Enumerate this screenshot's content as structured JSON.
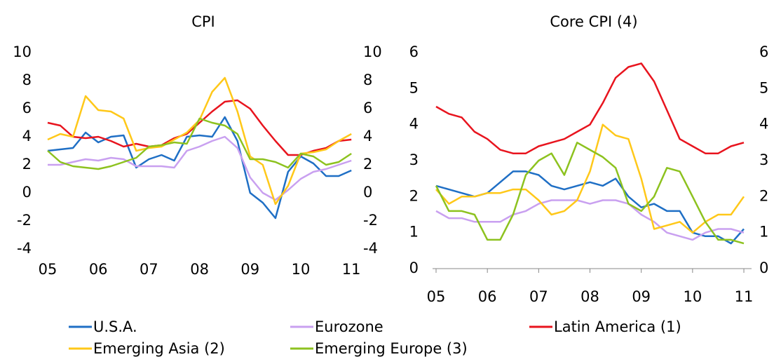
{
  "chart_data": [
    {
      "type": "line",
      "title": "CPI",
      "x": [
        5,
        5.25,
        5.5,
        5.75,
        6,
        6.25,
        6.5,
        6.75,
        7,
        7.25,
        7.5,
        7.75,
        8,
        8.25,
        8.5,
        8.75,
        9,
        9.25,
        9.5,
        9.75,
        10,
        10.25,
        10.5,
        10.75,
        11
      ],
      "xlim": [
        5,
        11.15
      ],
      "xticks": [
        {
          "value": 5,
          "label": "05"
        },
        {
          "value": 6,
          "label": "06"
        },
        {
          "value": 7,
          "label": "07"
        },
        {
          "value": 8,
          "label": "08"
        },
        {
          "value": 9,
          "label": "09"
        },
        {
          "value": 10,
          "label": "10"
        },
        {
          "value": 11,
          "label": "11"
        }
      ],
      "ylim": [
        -4,
        10
      ],
      "yticks": [
        -4,
        -2,
        0,
        2,
        4,
        6,
        8,
        10
      ],
      "y2lim": [
        -4,
        10
      ],
      "y2ticks": [
        -4,
        -2,
        0,
        2,
        4,
        6,
        8,
        10
      ],
      "series": [
        {
          "name": "U.S.A.",
          "color": "#1f6fc5",
          "values": [
            3.0,
            3.1,
            3.2,
            4.3,
            3.6,
            4.0,
            4.1,
            1.8,
            2.4,
            2.7,
            2.3,
            4.0,
            4.1,
            4.0,
            5.4,
            3.7,
            0.0,
            -0.7,
            -1.8,
            1.5,
            2.6,
            2.1,
            1.2,
            1.2,
            1.6
          ]
        },
        {
          "name": "Eurozone",
          "color": "#c9a0f0",
          "values": [
            2.0,
            2.0,
            2.2,
            2.4,
            2.3,
            2.5,
            2.4,
            1.9,
            1.9,
            1.9,
            1.8,
            3.0,
            3.3,
            3.7,
            4.0,
            3.2,
            1.1,
            0.0,
            -0.5,
            0.2,
            1.0,
            1.5,
            1.7,
            2.0,
            2.3
          ]
        },
        {
          "name": "Latin America (1)",
          "color": "#e8141e",
          "values": [
            5.0,
            4.8,
            4.0,
            3.9,
            4.0,
            3.7,
            3.3,
            3.5,
            3.3,
            3.4,
            3.9,
            4.2,
            5.0,
            5.8,
            6.5,
            6.6,
            6.0,
            4.8,
            3.7,
            2.7,
            2.7,
            3.0,
            3.2,
            3.7,
            3.8
          ]
        },
        {
          "name": "Emerging Asia (2)",
          "color": "#ffc819",
          "values": [
            3.8,
            4.2,
            4.0,
            6.9,
            5.9,
            5.8,
            5.3,
            3.0,
            3.2,
            3.3,
            3.8,
            4.3,
            5.2,
            7.2,
            8.2,
            5.8,
            2.6,
            2.0,
            -0.8,
            0.5,
            2.8,
            2.9,
            3.1,
            3.7,
            4.2
          ]
        },
        {
          "name": "Emerging Europe (3)",
          "color": "#8dc21f",
          "values": [
            3.0,
            2.2,
            1.9,
            1.8,
            1.7,
            1.9,
            2.2,
            2.5,
            3.3,
            3.4,
            3.6,
            3.5,
            5.3,
            5.0,
            4.8,
            4.2,
            2.4,
            2.4,
            2.2,
            1.8,
            2.8,
            2.6,
            2.0,
            2.2,
            2.8
          ]
        }
      ]
    },
    {
      "type": "line",
      "title": "Core CPI (4)",
      "x": [
        5,
        5.25,
        5.5,
        5.75,
        6,
        6.25,
        6.5,
        6.75,
        7,
        7.25,
        7.5,
        7.75,
        8,
        8.25,
        8.5,
        8.75,
        9,
        9.25,
        9.5,
        9.75,
        10,
        10.25,
        10.5,
        10.75,
        11
      ],
      "xlim": [
        5,
        11.15
      ],
      "xticks": [
        {
          "value": 5,
          "label": "05"
        },
        {
          "value": 6,
          "label": "06"
        },
        {
          "value": 7,
          "label": "07"
        },
        {
          "value": 8,
          "label": "08"
        },
        {
          "value": 9,
          "label": "09"
        },
        {
          "value": 10,
          "label": "10"
        },
        {
          "value": 11,
          "label": "11"
        }
      ],
      "ylim": [
        0,
        6
      ],
      "yticks": [
        0,
        1,
        2,
        3,
        4,
        5,
        6
      ],
      "y2lim": [
        0,
        6
      ],
      "y2ticks": [
        0,
        1,
        2,
        3,
        4,
        5,
        6
      ],
      "x_axis_line": true,
      "series": [
        {
          "name": "U.S.A.",
          "color": "#1f6fc5",
          "values": [
            2.3,
            2.2,
            2.1,
            2.0,
            2.1,
            2.4,
            2.7,
            2.7,
            2.6,
            2.3,
            2.2,
            2.3,
            2.4,
            2.3,
            2.5,
            2.0,
            1.7,
            1.8,
            1.6,
            1.6,
            1.0,
            0.9,
            0.9,
            0.7,
            1.1
          ]
        },
        {
          "name": "Eurozone",
          "color": "#c9a0f0",
          "values": [
            1.6,
            1.4,
            1.4,
            1.3,
            1.3,
            1.3,
            1.5,
            1.6,
            1.8,
            1.9,
            1.9,
            1.9,
            1.8,
            1.9,
            1.9,
            1.8,
            1.5,
            1.3,
            1.0,
            0.9,
            0.8,
            1.0,
            1.1,
            1.1,
            1.0
          ]
        },
        {
          "name": "Latin America (1)",
          "color": "#e8141e",
          "values": [
            4.5,
            4.3,
            4.2,
            3.8,
            3.6,
            3.3,
            3.2,
            3.2,
            3.4,
            3.5,
            3.6,
            3.8,
            4.0,
            4.6,
            5.3,
            5.6,
            5.7,
            5.2,
            4.4,
            3.6,
            3.4,
            3.2,
            3.2,
            3.4,
            3.5
          ]
        },
        {
          "name": "Emerging Asia (2)",
          "color": "#ffc819",
          "values": [
            2.2,
            1.8,
            2.0,
            2.0,
            2.1,
            2.1,
            2.2,
            2.2,
            1.9,
            1.5,
            1.6,
            1.9,
            2.7,
            4.0,
            3.7,
            3.6,
            2.5,
            1.1,
            1.2,
            1.3,
            1.0,
            1.3,
            1.5,
            1.5,
            2.0
          ]
        },
        {
          "name": "Emerging Europe (3)",
          "color": "#8dc21f",
          "values": [
            2.3,
            1.6,
            1.6,
            1.5,
            0.8,
            0.8,
            1.5,
            2.6,
            3.0,
            3.2,
            2.6,
            3.5,
            3.3,
            3.1,
            2.8,
            1.8,
            1.6,
            2.0,
            2.8,
            2.7,
            2.0,
            1.3,
            0.8,
            0.8,
            0.7
          ]
        }
      ]
    }
  ]
}
